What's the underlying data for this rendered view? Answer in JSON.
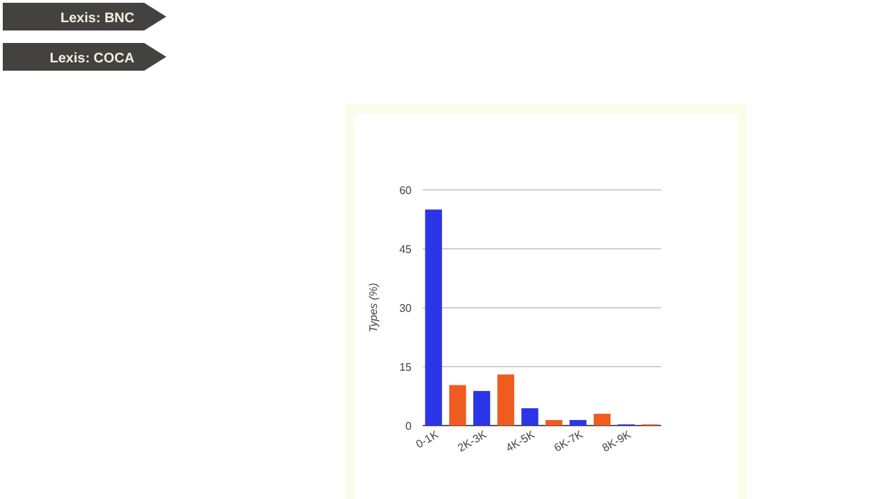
{
  "chart_data": {
    "type": "bar",
    "ylabel": "Types (%)",
    "categories": [
      "0-1K",
      null,
      "2K-3K",
      null,
      "4K-5K",
      null,
      "6K-7K",
      null,
      "8K-9K",
      null
    ],
    "values": [
      55,
      10.3,
      8.8,
      13,
      4.4,
      1.4,
      1.4,
      3,
      0.3,
      0.3
    ],
    "colors": [
      "#2a35e8",
      "#f05b1f",
      "#2a35e8",
      "#f05b1f",
      "#2a35e8",
      "#f05b1f",
      "#2a35e8",
      "#f05b1f",
      "#2a35e8",
      "#f05b1f"
    ],
    "ylim": [
      0,
      60
    ],
    "yticks": [
      0,
      15,
      30,
      45,
      60
    ],
    "grid": "y",
    "annotations": [
      "Lexis: BNC",
      "Lexis: COCA"
    ]
  }
}
